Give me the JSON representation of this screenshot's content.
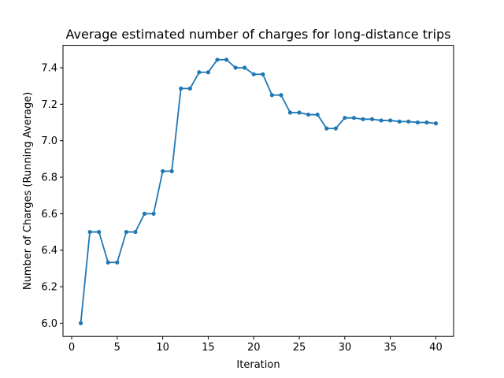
{
  "chart_data": {
    "type": "line",
    "title": "Average estimated number of charges for long-distance trips",
    "xlabel": "Iteration",
    "ylabel": "Number of Charges (Running Average)",
    "xlim": [
      -0.95,
      41.95
    ],
    "ylim": [
      5.9275,
      7.5225
    ],
    "xticks": [
      0,
      5,
      10,
      15,
      20,
      25,
      30,
      35,
      40
    ],
    "yticks": [
      6.0,
      6.2,
      6.4,
      6.6,
      6.8,
      7.0,
      7.2,
      7.4
    ],
    "xtick_labels": [
      "0",
      "5",
      "10",
      "15",
      "20",
      "25",
      "30",
      "35",
      "40"
    ],
    "ytick_labels": [
      "6.0",
      "6.2",
      "6.4",
      "6.6",
      "6.8",
      "7.0",
      "7.2",
      "7.4"
    ],
    "grid": false,
    "marker": "circle",
    "series": [
      {
        "color": "#1f77b4",
        "x": [
          1,
          2,
          3,
          4,
          5,
          6,
          7,
          8,
          9,
          10,
          11,
          12,
          13,
          14,
          15,
          16,
          17,
          18,
          19,
          20,
          21,
          22,
          23,
          24,
          25,
          26,
          27,
          28,
          29,
          30,
          31,
          32,
          33,
          34,
          35,
          36,
          37,
          38,
          39,
          40
        ],
        "y": [
          6.0,
          6.5,
          6.5,
          6.333,
          6.333,
          6.5,
          6.5,
          6.6,
          6.6,
          6.833,
          6.833,
          7.286,
          7.286,
          7.375,
          7.375,
          7.444,
          7.444,
          7.4,
          7.4,
          7.364,
          7.364,
          7.25,
          7.25,
          7.154,
          7.154,
          7.143,
          7.143,
          7.067,
          7.067,
          7.125,
          7.125,
          7.118,
          7.118,
          7.111,
          7.111,
          7.105,
          7.105,
          7.1,
          7.1,
          7.095
        ]
      }
    ]
  }
}
